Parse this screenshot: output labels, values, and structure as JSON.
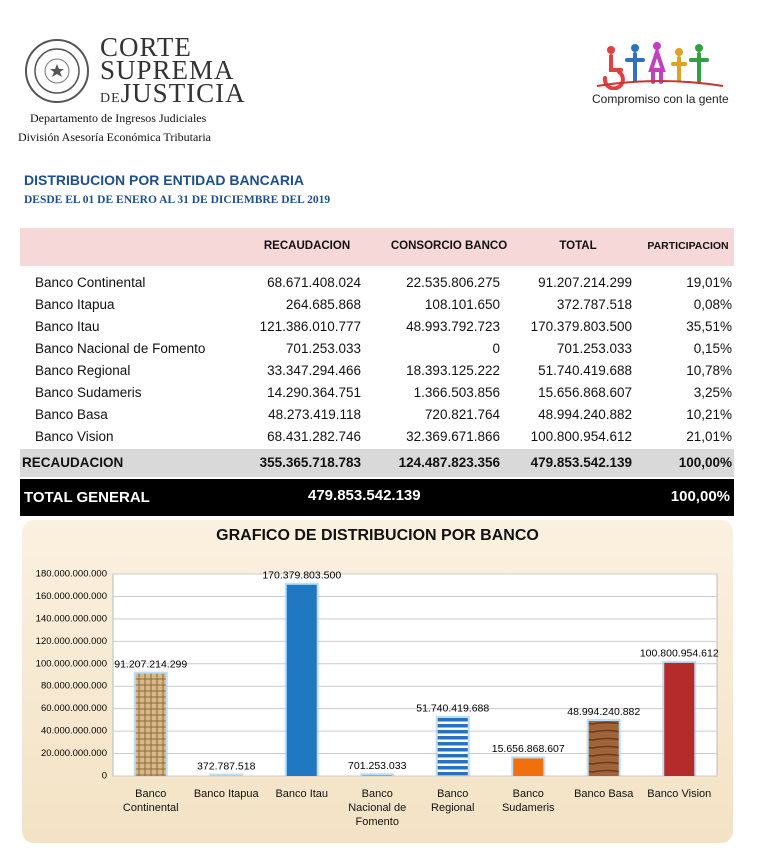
{
  "header": {
    "institution": [
      "CORTE",
      "SUPREMA",
      "DE",
      "JUSTICIA"
    ],
    "department": "Departamento de Ingresos Judiciales",
    "division": "División Asesoría Económica Tributaria",
    "slogan": "Compromiso con la gente"
  },
  "title": "DISTRIBUCION POR ENTIDAD BANCARIA",
  "subtitle": "DESDE EL 01 DE ENERO AL 31 DE DICIEMBRE DEL 2019",
  "table": {
    "columns": [
      "RECAUDACION",
      "CONSORCIO BANCO",
      "TOTAL",
      "PARTICIPACION"
    ],
    "rows": [
      [
        "Banco Continental",
        "68.671.408.024",
        "22.535.806.275",
        "91.207.214.299",
        "19,01%"
      ],
      [
        "Banco Itapua",
        "264.685.868",
        "108.101.650",
        "372.787.518",
        "0,08%"
      ],
      [
        "Banco Itau",
        "121.386.010.777",
        "48.993.792.723",
        "170.379.803.500",
        "35,51%"
      ],
      [
        "Banco Nacional de Fomento",
        "701.253.033",
        "0",
        "701.253.033",
        "0,15%"
      ],
      [
        "Banco Regional",
        "33.347.294.466",
        "18.393.125.222",
        "51.740.419.688",
        "10,78%"
      ],
      [
        "Banco Sudameris",
        "14.290.364.751",
        "1.366.503.856",
        "15.656.868.607",
        "3,25%"
      ],
      [
        "Banco Basa",
        "48.273.419.118",
        "720.821.764",
        "48.994.240.882",
        "10,21%"
      ],
      [
        "Banco Vision",
        "68.431.282.746",
        "32.369.671.866",
        "100.800.954.612",
        "21,01%"
      ]
    ],
    "subtotal": [
      "RECAUDACION",
      "355.365.718.783",
      "124.487.823.356",
      "479.853.542.139",
      "100,00%"
    ],
    "total": [
      "TOTAL GENERAL",
      "479.853.542.139",
      "100,00%"
    ]
  },
  "chart_data": {
    "type": "bar",
    "title": "GRAFICO DE DISTRIBUCION POR BANCO",
    "categories": [
      "Banco Continental",
      "Banco Itapua",
      "Banco Itau",
      "Banco Nacional de Fomento",
      "Banco Regional",
      "Banco Sudameris",
      "Banco Basa",
      "Banco Vision"
    ],
    "values": [
      91207214299,
      372787518,
      170379803500,
      701253033,
      51740419688,
      15656868607,
      48994240882,
      100800954612
    ],
    "value_labels": [
      "91.207.214.299",
      "372.787.518",
      "170.379.803.500",
      "701.253.033",
      "51.740.419.688",
      "15.656.868.607",
      "48.994.240.882",
      "100.800.954.612"
    ],
    "colors": [
      "url(#pat-weave)",
      "#c8b89a",
      "#1f78c1",
      "#5fa8e0",
      "url(#pat-stripe)",
      "#f07010",
      "url(#pat-wood)",
      "#b52a2a"
    ],
    "ylim": [
      0,
      180000000000
    ],
    "yticks": [
      0,
      {
        "value": 20000000000,
        "label": "20.000.000.000"
      },
      {
        "value": 40000000000,
        "label": "40.000.000.000"
      },
      {
        "value": 60000000000,
        "label": "60.000.000.000"
      },
      {
        "value": 80000000000,
        "label": "80.000.000.000"
      },
      {
        "value": 100000000000,
        "label": "100.000.000.000"
      },
      {
        "value": 120000000000,
        "label": "120.000.000.000"
      },
      {
        "value": 140000000000,
        "label": "140.000.000.000"
      },
      {
        "value": 160000000000,
        "label": "160.000.000.000"
      },
      {
        "value": 180000000000,
        "label": "180.000.000.000"
      }
    ],
    "grid": true
  }
}
